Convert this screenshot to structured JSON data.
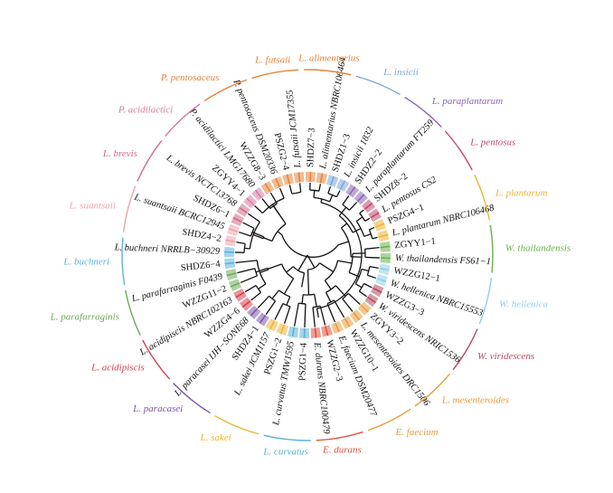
{
  "figure": {
    "leaves": [
      {
        "label": "L. futsaii JCM17355",
        "group": 1
      },
      {
        "label": "SHDZ7−3",
        "group": 2
      },
      {
        "label": "L. alimentarius NBRC106464",
        "group": 2
      },
      {
        "label": "SHDZ1−3",
        "group": 3
      },
      {
        "label": "L. insicii 1832",
        "group": 3
      },
      {
        "label": "SHDZ2−2",
        "group": 4
      },
      {
        "label": "L. paraplantarum FT259",
        "group": 4
      },
      {
        "label": "SHDZ8−2",
        "group": 5
      },
      {
        "label": "L. pentosus CS2",
        "group": 5
      },
      {
        "label": "PSZG4−1",
        "group": 6
      },
      {
        "label": "L. plantarum NBRC106468",
        "group": 6
      },
      {
        "label": "ZGYY1−1",
        "group": 7
      },
      {
        "label": "W. thailandensis FS61−1",
        "group": 7
      },
      {
        "label": "WZZG12−1",
        "group": 8
      },
      {
        "label": "W. hellenica NBRC15553",
        "group": 8
      },
      {
        "label": "WZZG3−3",
        "group": 9
      },
      {
        "label": "W. viridescens NRIC1536",
        "group": 9
      },
      {
        "label": "ZGYY3−2",
        "group": 10
      },
      {
        "label": "L. mesenteroides DRC1506",
        "group": 10
      },
      {
        "label": "WZZG10−1",
        "group": 11
      },
      {
        "label": "E. faecium DSM20477",
        "group": 11
      },
      {
        "label": "WZZG2−3",
        "group": 12
      },
      {
        "label": "E. durans NBRC100479",
        "group": 12
      },
      {
        "label": "PSZG1−4",
        "group": 13
      },
      {
        "label": "L. curvatus TMW1595",
        "group": 13
      },
      {
        "label": "PSZG1−2",
        "group": 14
      },
      {
        "label": "L. sakei JCM1157",
        "group": 14
      },
      {
        "label": "SHDZ4−1",
        "group": 15
      },
      {
        "label": "L. paracasei IJH−SONE68",
        "group": 15
      },
      {
        "label": "WZZG4−6",
        "group": 16
      },
      {
        "label": "L. acidipiscis NBRC102163",
        "group": 16
      },
      {
        "label": "WZZG11−2",
        "group": 17
      },
      {
        "label": "L. parafarraginis F0439",
        "group": 17
      },
      {
        "label": "SHDZ6−4",
        "group": 18
      },
      {
        "label": "L. buchneri NRRLB−30929",
        "group": 18
      },
      {
        "label": "SHDZ4−2",
        "group": 19
      },
      {
        "label": "L. suantsaii BCRC12945",
        "group": 19
      },
      {
        "label": "SHDZ6−1",
        "group": 20
      },
      {
        "label": "L. brevis NCTC13768",
        "group": 20
      },
      {
        "label": "ZGYY4−1",
        "group": 21
      },
      {
        "label": "P. acidilactici LMG17680",
        "group": 21
      },
      {
        "label": "WZZG8−3",
        "group": 22
      },
      {
        "label": "P. pentosaceus DSM20336",
        "group": 22
      },
      {
        "label": "PSZG2−4",
        "group": 1
      }
    ],
    "groups": [
      {
        "id": 1,
        "label": "L. futsaii",
        "color": "#e6833a"
      },
      {
        "id": 2,
        "label": "L. alimentarius",
        "color": "#e6833a"
      },
      {
        "id": 3,
        "label": "L. insicii",
        "color": "#7aa6d8"
      },
      {
        "id": 4,
        "label": "L. paraplantarum",
        "color": "#8a63b5"
      },
      {
        "id": 5,
        "label": "L. pentosus",
        "color": "#c2476a"
      },
      {
        "id": 6,
        "label": "L. plantarum",
        "color": "#efb431"
      },
      {
        "id": 7,
        "label": "W. thailandensis",
        "color": "#6ab04c"
      },
      {
        "id": 8,
        "label": "W. hellenica",
        "color": "#8fd0ea"
      },
      {
        "id": 9,
        "label": "W. viridescens",
        "color": "#b5475e"
      },
      {
        "id": 10,
        "label": "L. mesenteroides",
        "color": "#e89a3c"
      },
      {
        "id": 11,
        "label": "E. faecium",
        "color": "#e89a3c"
      },
      {
        "id": 12,
        "label": "E. durans",
        "color": "#e0513a"
      },
      {
        "id": 13,
        "label": "L. curvatus",
        "color": "#58b2d3"
      },
      {
        "id": 14,
        "label": "L. sakei",
        "color": "#efb431"
      },
      {
        "id": 15,
        "label": "L. paracasei",
        "color": "#7f57a7"
      },
      {
        "id": 16,
        "label": "L. acidipiscis",
        "color": "#d63c48"
      },
      {
        "id": 17,
        "label": "L. parafarraginis",
        "color": "#6cab5a"
      },
      {
        "id": 18,
        "label": "L. buchneri",
        "color": "#5ab4e0"
      },
      {
        "id": 19,
        "label": "L. suantsaii",
        "color": "#f0a3ab"
      },
      {
        "id": 20,
        "label": "L. brevis",
        "color": "#d06a86"
      },
      {
        "id": 21,
        "label": "P. acidilactici",
        "color": "#d979a1"
      },
      {
        "id": 22,
        "label": "P. pentosaceus",
        "color": "#e6833a"
      }
    ]
  }
}
